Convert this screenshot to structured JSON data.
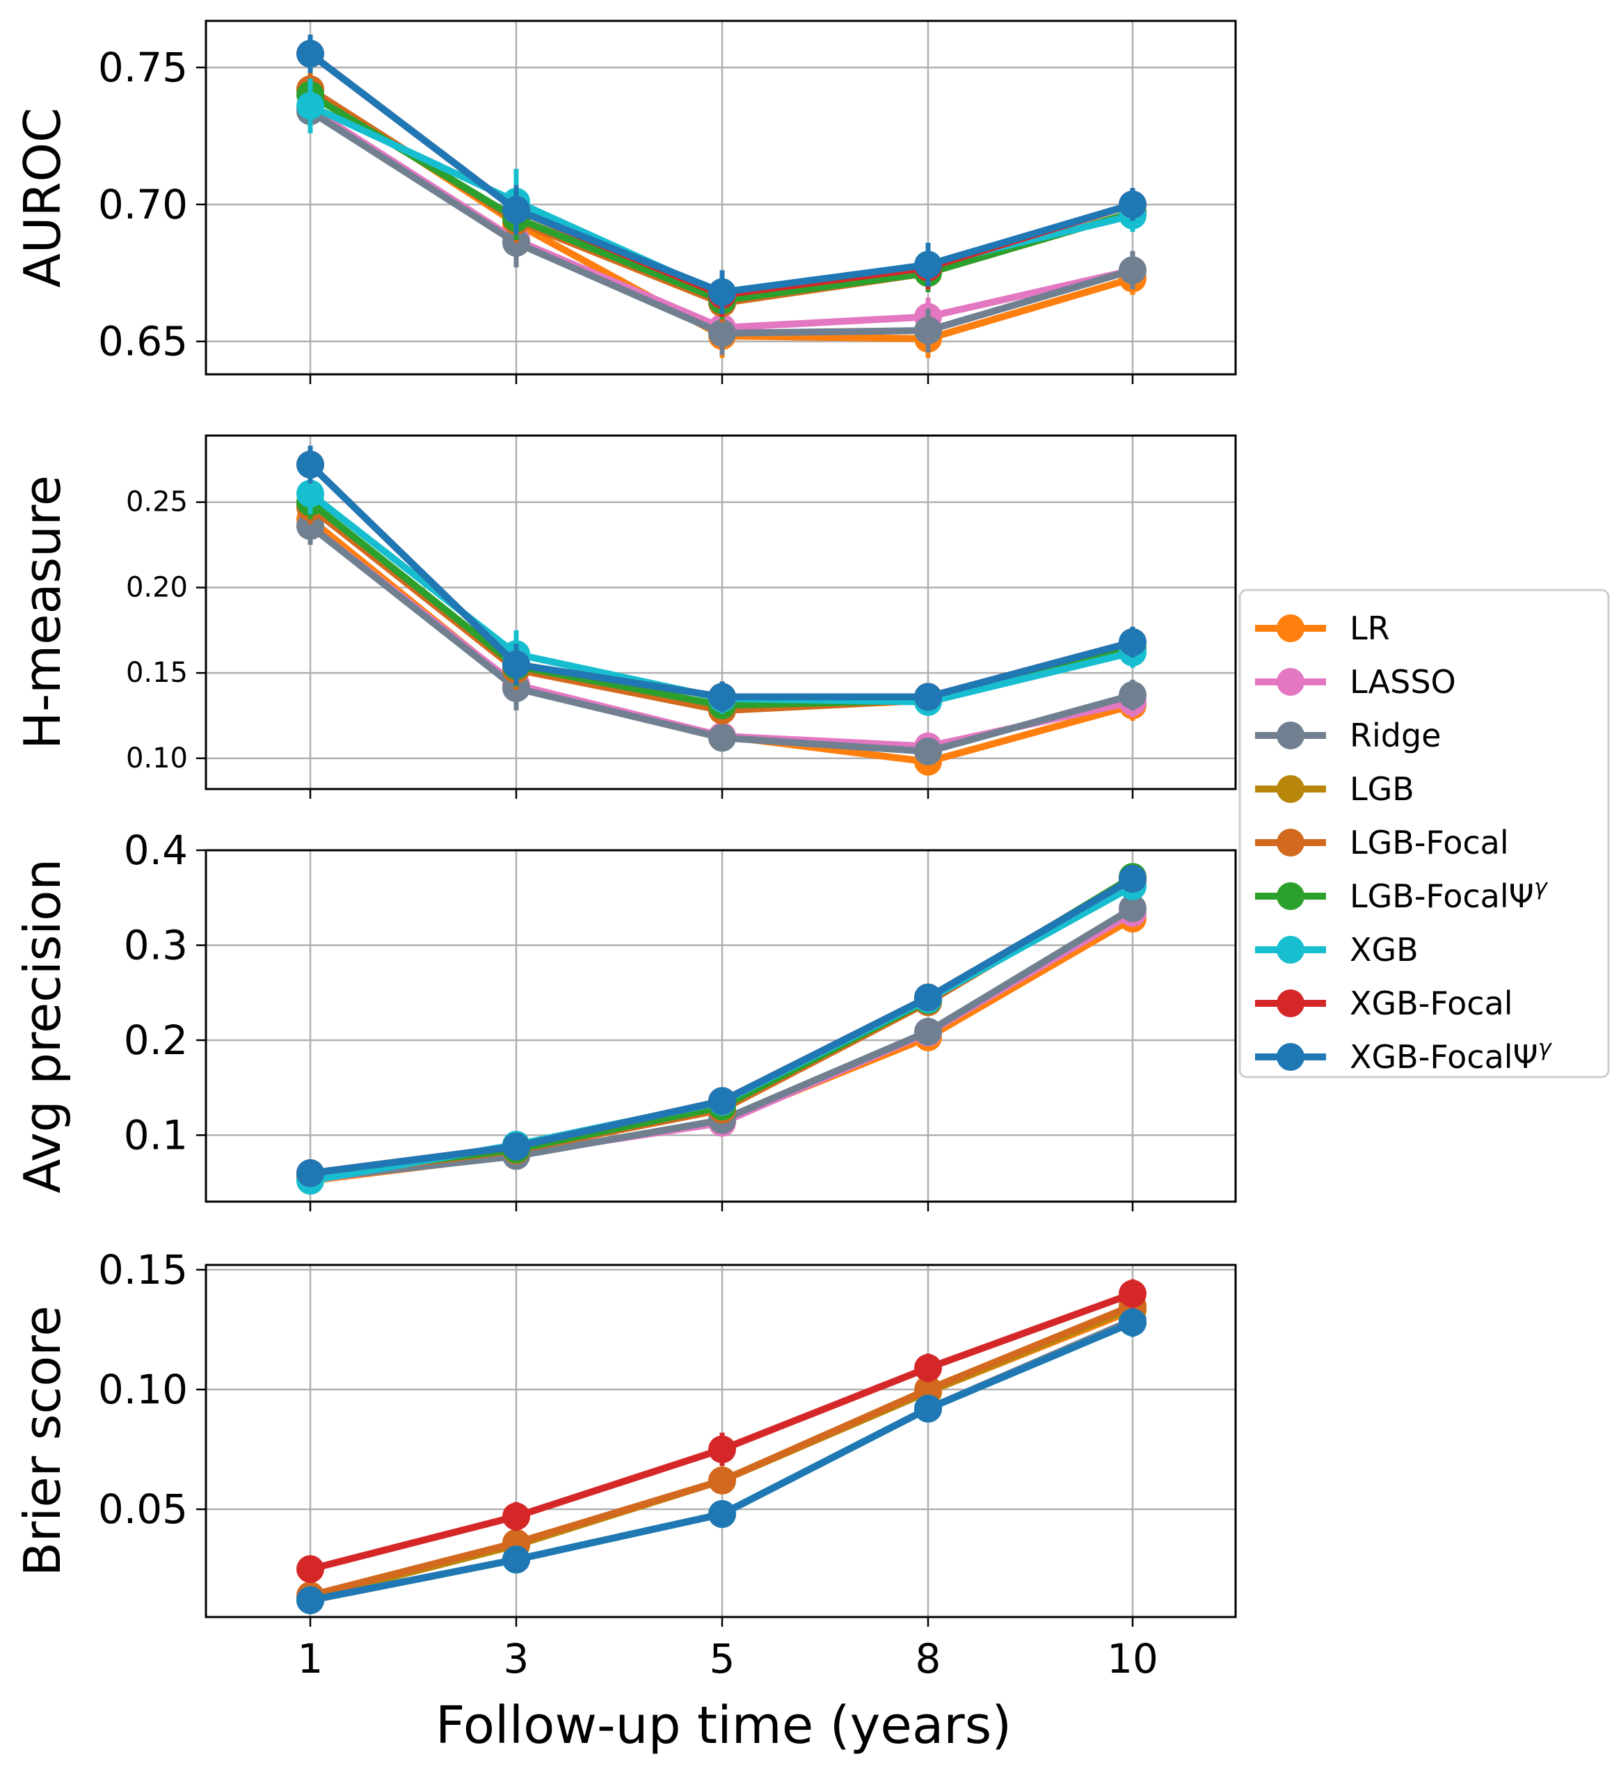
{
  "chart_data": {
    "type": "line",
    "xlabel": "Follow-up time (years)",
    "x": [
      1,
      3,
      5,
      8,
      10
    ],
    "legend": {
      "placement": "center-right",
      "entries": [
        {
          "name": "LR",
          "color": "#ff7f0e"
        },
        {
          "name": "LASSO",
          "color": "#e377c2"
        },
        {
          "name": "Ridge",
          "color": "#708090"
        },
        {
          "name": "LGB",
          "color": "#b8860b"
        },
        {
          "name": "LGB-Focal",
          "color": "#d2691e"
        },
        {
          "name": "LGB-FocalΨ",
          "sup": "γ",
          "color": "#2ca02c"
        },
        {
          "name": "XGB",
          "color": "#17becf"
        },
        {
          "name": "XGB-Focal",
          "color": "#d62728"
        },
        {
          "name": "XGB-FocalΨ",
          "sup": "γ",
          "color": "#1f77b4"
        }
      ]
    },
    "panels": [
      {
        "ylabel": "AUROC",
        "ylim": [
          0.638,
          0.767
        ],
        "yticks": [
          0.65,
          0.7,
          0.75
        ],
        "ytick_labels": [
          "0.65",
          "0.70",
          "0.75"
        ],
        "grid": true,
        "series": [
          {
            "name": "LR",
            "color": "#ff7f0e",
            "values": [
              0.742,
              0.693,
              0.652,
              0.651,
              0.673
            ],
            "err": [
              0.006,
              0.008,
              0.008,
              0.007,
              0.006
            ]
          },
          {
            "name": "LASSO",
            "color": "#e377c2",
            "values": [
              0.735,
              0.687,
              0.655,
              0.659,
              0.676
            ],
            "err": [
              0.006,
              0.008,
              0.007,
              0.007,
              0.006
            ]
          },
          {
            "name": "Ridge",
            "color": "#708090",
            "values": [
              0.734,
              0.686,
              0.653,
              0.654,
              0.676
            ],
            "err": [
              0.007,
              0.009,
              0.008,
              0.008,
              0.007
            ]
          },
          {
            "name": "LGB",
            "color": "#b8860b",
            "values": [
              0.742,
              0.694,
              0.664,
              0.675,
              0.697
            ],
            "err": [
              0.006,
              0.008,
              0.007,
              0.007,
              0.006
            ]
          },
          {
            "name": "LGB-Focal",
            "color": "#d2691e",
            "values": [
              0.742,
              0.694,
              0.664,
              0.675,
              0.697
            ],
            "err": [
              0.006,
              0.008,
              0.007,
              0.007,
              0.006
            ]
          },
          {
            "name": "LGB-FocalΨγ",
            "color": "#2ca02c",
            "values": [
              0.74,
              0.695,
              0.665,
              0.675,
              0.697
            ],
            "err": [
              0.006,
              0.008,
              0.007,
              0.007,
              0.006
            ]
          },
          {
            "name": "XGB",
            "color": "#17becf",
            "values": [
              0.736,
              0.701,
              0.667,
              0.678,
              0.696
            ],
            "err": [
              0.01,
              0.012,
              0.008,
              0.008,
              0.006
            ]
          },
          {
            "name": "XGB-Focal",
            "color": "#d62728",
            "values": [
              0.755,
              0.698,
              0.667,
              0.677,
              0.7
            ],
            "err": [
              0.007,
              0.009,
              0.008,
              0.008,
              0.006
            ]
          },
          {
            "name": "XGB-FocalΨγ",
            "color": "#1f77b4",
            "values": [
              0.755,
              0.698,
              0.668,
              0.678,
              0.7
            ],
            "err": [
              0.007,
              0.009,
              0.008,
              0.008,
              0.006
            ]
          }
        ]
      },
      {
        "ylabel": "H-measure",
        "ylim": [
          0.082,
          0.289
        ],
        "yticks": [
          0.1,
          0.15,
          0.2,
          0.25
        ],
        "ytick_labels": [
          "0.10",
          "0.15",
          "0.20",
          "0.25"
        ],
        "grid": true,
        "series": [
          {
            "name": "LR",
            "color": "#ff7f0e",
            "values": [
              0.24,
              0.142,
              0.113,
              0.098,
              0.131
            ],
            "err": [
              0.01,
              0.012,
              0.008,
              0.007,
              0.009
            ]
          },
          {
            "name": "LASSO",
            "color": "#e377c2",
            "values": [
              0.236,
              0.143,
              0.113,
              0.107,
              0.133
            ],
            "err": [
              0.01,
              0.012,
              0.008,
              0.007,
              0.009
            ]
          },
          {
            "name": "Ridge",
            "color": "#708090",
            "values": [
              0.236,
              0.141,
              0.112,
              0.104,
              0.137
            ],
            "err": [
              0.011,
              0.013,
              0.008,
              0.008,
              0.009
            ]
          },
          {
            "name": "LGB",
            "color": "#b8860b",
            "values": [
              0.248,
              0.152,
              0.128,
              0.134,
              0.164
            ],
            "err": [
              0.01,
              0.012,
              0.008,
              0.007,
              0.009
            ]
          },
          {
            "name": "LGB-Focal",
            "color": "#d2691e",
            "values": [
              0.247,
              0.152,
              0.128,
              0.134,
              0.164
            ],
            "err": [
              0.01,
              0.012,
              0.008,
              0.007,
              0.009
            ]
          },
          {
            "name": "LGB-FocalΨγ",
            "color": "#2ca02c",
            "values": [
              0.25,
              0.154,
              0.131,
              0.134,
              0.164
            ],
            "err": [
              0.01,
              0.012,
              0.008,
              0.007,
              0.009
            ]
          },
          {
            "name": "XGB",
            "color": "#17becf",
            "values": [
              0.255,
              0.161,
              0.135,
              0.133,
              0.162
            ],
            "err": [
              0.012,
              0.014,
              0.009,
              0.008,
              0.009
            ]
          },
          {
            "name": "XGB-Focal",
            "color": "#d62728",
            "values": [
              0.272,
              0.155,
              0.136,
              0.136,
              0.168
            ],
            "err": [
              0.011,
              0.012,
              0.009,
              0.008,
              0.009
            ]
          },
          {
            "name": "XGB-FocalΨγ",
            "color": "#1f77b4",
            "values": [
              0.272,
              0.155,
              0.136,
              0.136,
              0.168
            ],
            "err": [
              0.011,
              0.012,
              0.009,
              0.008,
              0.009
            ]
          }
        ]
      },
      {
        "ylabel": "Avg precision",
        "ylim": [
          0.03,
          0.4
        ],
        "yticks": [
          0.1,
          0.2,
          0.3,
          0.4
        ],
        "ytick_labels": [
          "0.1",
          "0.2",
          "0.3",
          "0.4"
        ],
        "grid": true,
        "series": [
          {
            "name": "LR",
            "color": "#ff7f0e",
            "values": [
              0.052,
              0.079,
              0.115,
              0.203,
              0.328
            ],
            "err": [
              0.003,
              0.004,
              0.006,
              0.008,
              0.01
            ]
          },
          {
            "name": "LASSO",
            "color": "#e377c2",
            "values": [
              0.053,
              0.08,
              0.113,
              0.208,
              0.334
            ],
            "err": [
              0.003,
              0.004,
              0.006,
              0.008,
              0.01
            ]
          },
          {
            "name": "Ridge",
            "color": "#708090",
            "values": [
              0.054,
              0.078,
              0.116,
              0.209,
              0.339
            ],
            "err": [
              0.003,
              0.004,
              0.006,
              0.008,
              0.01
            ]
          },
          {
            "name": "LGB",
            "color": "#b8860b",
            "values": [
              0.057,
              0.084,
              0.127,
              0.24,
              0.37
            ],
            "err": [
              0.003,
              0.004,
              0.006,
              0.008,
              0.012
            ]
          },
          {
            "name": "LGB-Focal",
            "color": "#d2691e",
            "values": [
              0.057,
              0.084,
              0.127,
              0.24,
              0.368
            ],
            "err": [
              0.003,
              0.004,
              0.006,
              0.008,
              0.012
            ]
          },
          {
            "name": "LGB-FocalΨγ",
            "color": "#2ca02c",
            "values": [
              0.058,
              0.085,
              0.13,
              0.242,
              0.372
            ],
            "err": [
              0.003,
              0.004,
              0.006,
              0.008,
              0.012
            ]
          },
          {
            "name": "XGB",
            "color": "#17becf",
            "values": [
              0.052,
              0.09,
              0.135,
              0.243,
              0.362
            ],
            "err": [
              0.003,
              0.004,
              0.006,
              0.008,
              0.01
            ]
          },
          {
            "name": "XGB-Focal",
            "color": "#d62728",
            "values": [
              0.06,
              0.088,
              0.136,
              0.245,
              0.37
            ],
            "err": [
              0.003,
              0.004,
              0.006,
              0.008,
              0.01
            ]
          },
          {
            "name": "XGB-FocalΨγ",
            "color": "#1f77b4",
            "values": [
              0.06,
              0.088,
              0.136,
              0.245,
              0.37
            ],
            "err": [
              0.003,
              0.004,
              0.006,
              0.008,
              0.01
            ]
          }
        ]
      },
      {
        "ylabel": "Brier score",
        "ylim": [
          0.005,
          0.152
        ],
        "yticks": [
          0.05,
          0.1,
          0.15
        ],
        "ytick_labels": [
          "0.05",
          "0.10",
          "0.15"
        ],
        "grid": true,
        "series": [
          {
            "name": "LR",
            "color": "#ff7f0e",
            "values": [
              0.013,
              0.035,
              0.062,
              0.099,
              0.133
            ],
            "err": [
              0.002,
              0.004,
              0.005,
              0.006,
              0.006
            ]
          },
          {
            "name": "LASSO",
            "color": "#e377c2",
            "values": [
              0.012,
              0.029,
              0.048,
              0.092,
              0.129
            ],
            "err": [
              0.002,
              0.003,
              0.004,
              0.005,
              0.006
            ]
          },
          {
            "name": "Ridge",
            "color": "#708090",
            "values": [
              0.012,
              0.029,
              0.048,
              0.092,
              0.129
            ],
            "err": [
              0.002,
              0.003,
              0.004,
              0.005,
              0.006
            ]
          },
          {
            "name": "LGB",
            "color": "#b8860b",
            "values": [
              0.013,
              0.035,
              0.062,
              0.099,
              0.134
            ],
            "err": [
              0.002,
              0.004,
              0.005,
              0.006,
              0.006
            ]
          },
          {
            "name": "LGB-Focal",
            "color": "#d2691e",
            "values": [
              0.014,
              0.036,
              0.062,
              0.1,
              0.135
            ],
            "err": [
              0.002,
              0.004,
              0.005,
              0.006,
              0.006
            ]
          },
          {
            "name": "LGB-FocalΨγ",
            "color": "#2ca02c",
            "values": [
              0.012,
              0.029,
              0.048,
              0.092,
              0.128
            ],
            "err": [
              0.002,
              0.003,
              0.004,
              0.005,
              0.006
            ]
          },
          {
            "name": "XGB",
            "color": "#17becf",
            "values": [
              0.012,
              0.029,
              0.048,
              0.092,
              0.128
            ],
            "err": [
              0.002,
              0.003,
              0.004,
              0.005,
              0.006
            ]
          },
          {
            "name": "XGB-Focal",
            "color": "#d62728",
            "values": [
              0.025,
              0.047,
              0.075,
              0.109,
              0.14
            ],
            "err": [
              0.004,
              0.006,
              0.007,
              0.006,
              0.006
            ]
          },
          {
            "name": "XGB-FocalΨγ",
            "color": "#1f77b4",
            "values": [
              0.012,
              0.029,
              0.048,
              0.092,
              0.128
            ],
            "err": [
              0.002,
              0.003,
              0.004,
              0.005,
              0.006
            ]
          }
        ]
      }
    ]
  }
}
